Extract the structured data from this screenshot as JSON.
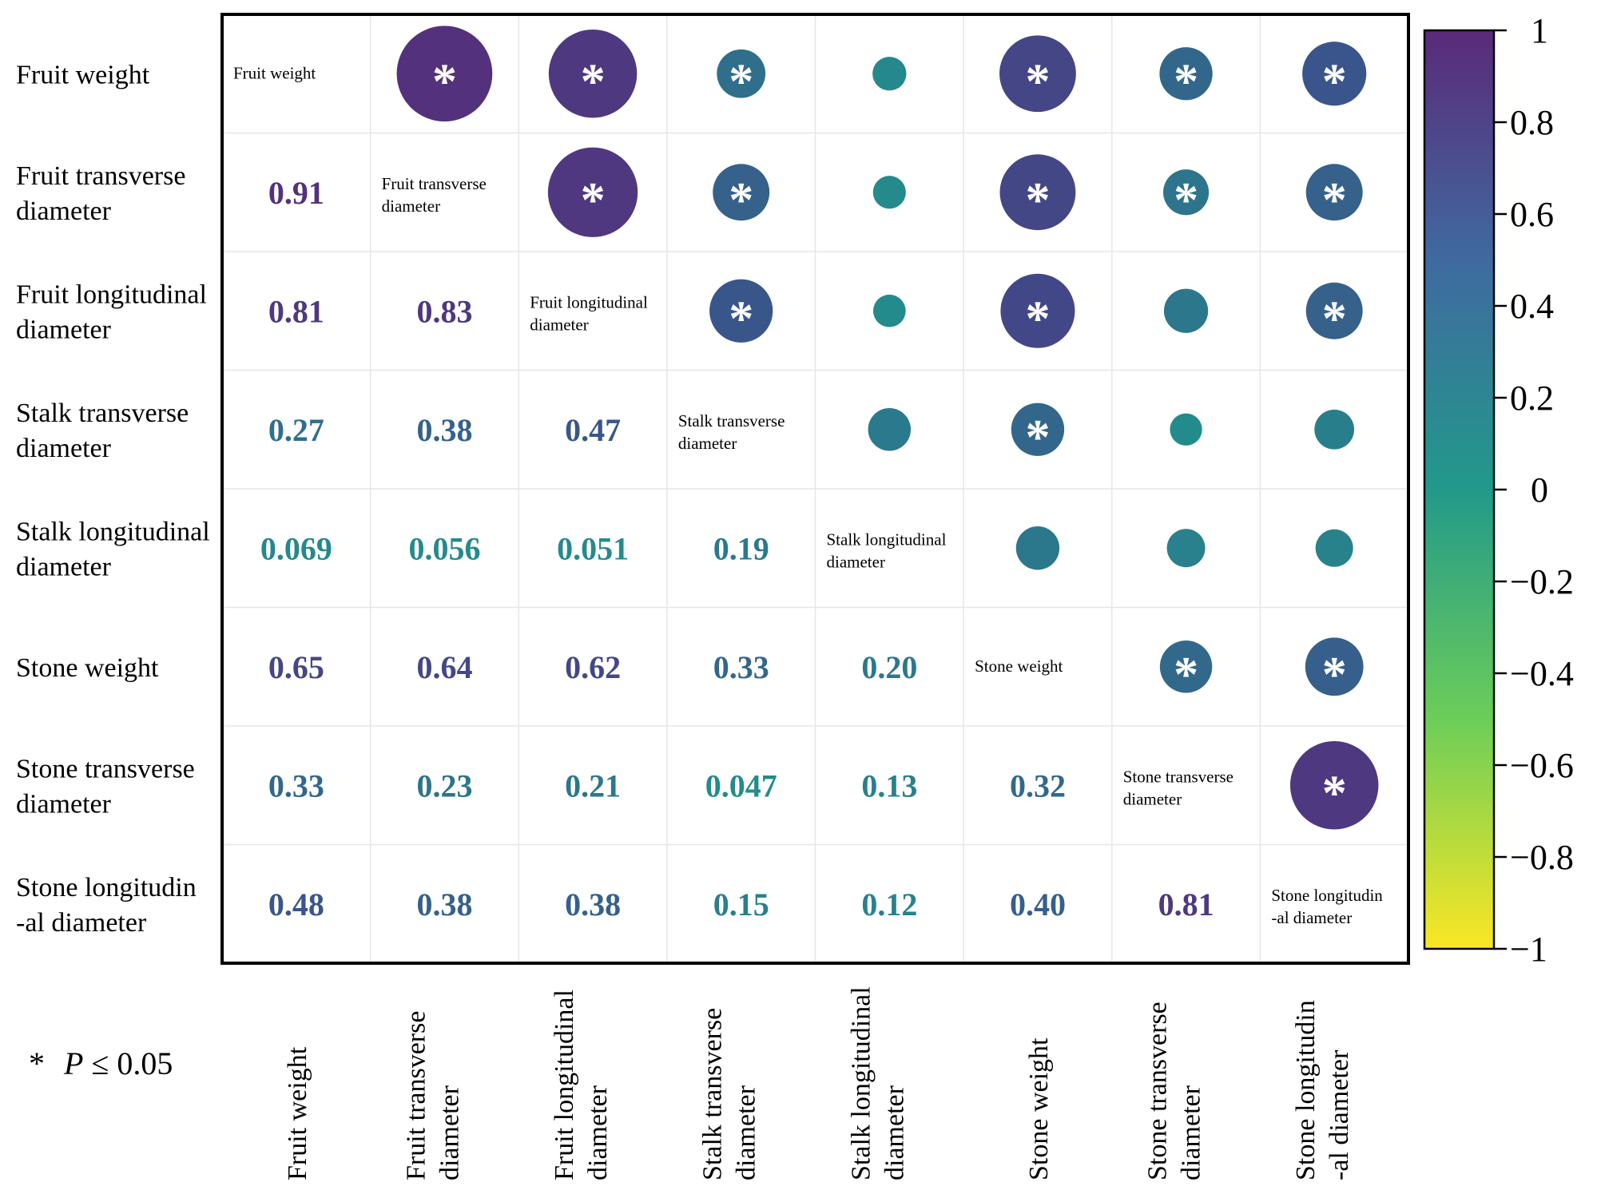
{
  "chart_data": {
    "type": "heatmap",
    "title": "",
    "variables": [
      [
        "Fruit weight"
      ],
      [
        "Fruit transverse",
        "diameter"
      ],
      [
        "Fruit longitudinal",
        "diameter"
      ],
      [
        "Stalk transverse",
        "diameter"
      ],
      [
        "Stalk longitudinal",
        "diameter"
      ],
      [
        "Stone weight"
      ],
      [
        "Stone transverse",
        "diameter"
      ],
      [
        "Stone longitudin",
        "-al diameter"
      ]
    ],
    "correlation_labels": [
      [
        null,
        null,
        null,
        null,
        null,
        null,
        null,
        null
      ],
      [
        "0.91",
        null,
        null,
        null,
        null,
        null,
        null,
        null
      ],
      [
        "0.81",
        "0.83",
        null,
        null,
        null,
        null,
        null,
        null
      ],
      [
        "0.27",
        "0.38",
        "0.47",
        null,
        null,
        null,
        null,
        null
      ],
      [
        "0.069",
        "0.056",
        "0.051",
        "0.19",
        null,
        null,
        null,
        null
      ],
      [
        "0.65",
        "0.64",
        "0.62",
        "0.33",
        "0.20",
        null,
        null,
        null
      ],
      [
        "0.33",
        "0.23",
        "0.21",
        "0.047",
        "0.13",
        "0.32",
        null,
        null
      ],
      [
        "0.48",
        "0.38",
        "0.38",
        "0.15",
        "0.12",
        "0.40",
        "0.81",
        null
      ]
    ],
    "significant": [
      [
        false,
        true,
        true,
        true,
        false,
        true,
        true,
        true
      ],
      [
        true,
        false,
        true,
        true,
        false,
        true,
        true,
        true
      ],
      [
        true,
        true,
        false,
        true,
        false,
        true,
        false,
        true
      ],
      [
        true,
        true,
        true,
        false,
        false,
        true,
        false,
        false
      ],
      [
        false,
        false,
        false,
        false,
        false,
        false,
        false,
        false
      ],
      [
        true,
        true,
        true,
        true,
        false,
        false,
        true,
        true
      ],
      [
        true,
        true,
        false,
        false,
        false,
        true,
        false,
        true
      ],
      [
        true,
        true,
        true,
        false,
        false,
        true,
        true,
        false
      ]
    ],
    "significance_marker": "*",
    "colorbar": {
      "range": [
        -1,
        1
      ],
      "ticks": [
        "1",
        "0.8",
        "0.6",
        "0.4",
        "0.2",
        "0",
        "−0.2",
        "−0.4",
        "−0.6",
        "−0.8",
        "−1"
      ],
      "colors": [
        "#fde725",
        "#5ec962",
        "#21918c",
        "#3b528b",
        "#440154"
      ],
      "max_color": "#5a2a79"
    },
    "footnote": {
      "star": "*",
      "p": "P",
      "rest": " ≤ 0.05"
    }
  }
}
